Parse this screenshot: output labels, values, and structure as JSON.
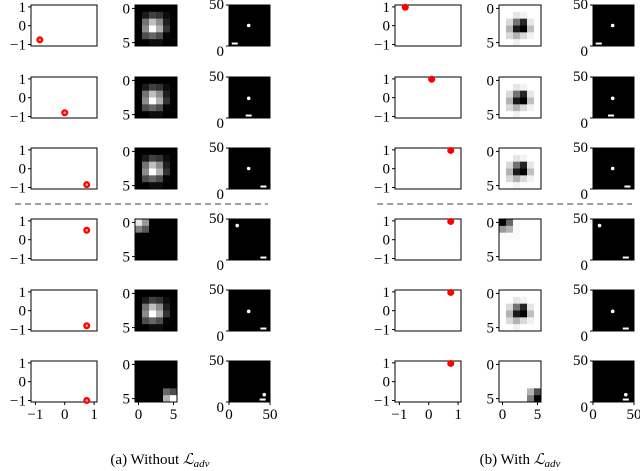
{
  "chart_data": {
    "type": "figure-grid",
    "panels": [
      {
        "caption_prefix": "(a) Without ",
        "caption_symbol": "ℒ",
        "caption_sub": "adv",
        "dot_style": "ring",
        "heatmap_colormap": "gray",
        "rows": [
          {
            "point": [
              -0.85,
              -0.75
            ],
            "heatmap": "blob",
            "ball": [
              24,
              25
            ],
            "paddle_x": 7
          },
          {
            "point": [
              0.0,
              -0.8
            ],
            "heatmap": "blob",
            "ball": [
              24,
              24
            ],
            "paddle_x": 24
          },
          {
            "point": [
              0.75,
              -0.85
            ],
            "heatmap": "blob",
            "ball": [
              24,
              25
            ],
            "paddle_x": 42
          },
          {
            "point": [
              0.75,
              0.5
            ],
            "heatmap": "corner_tl",
            "ball": [
              10,
              42
            ],
            "paddle_x": 42
          },
          {
            "point": [
              0.75,
              -0.8
            ],
            "heatmap": "blob",
            "ball": [
              24,
              24
            ],
            "paddle_x": 42
          },
          {
            "point": [
              0.75,
              -1.0
            ],
            "heatmap": "corner_br",
            "ball": [
              43,
              9
            ],
            "paddle_x": 41
          }
        ],
        "heatmaps": {
          "blob": [
            [
              0,
              0,
              0,
              0,
              0,
              0
            ],
            [
              0,
              0.1,
              0.25,
              0.2,
              0.05,
              0
            ],
            [
              0,
              0.45,
              0.75,
              0.55,
              0.12,
              0
            ],
            [
              0,
              0.55,
              1,
              0.7,
              0.2,
              0
            ],
            [
              0,
              0.3,
              0.4,
              0.3,
              0.02,
              0
            ],
            [
              0,
              0,
              0.05,
              0.05,
              0,
              0
            ]
          ],
          "corner_tl": [
            [
              0.9,
              0.6,
              0,
              0,
              0,
              0
            ],
            [
              0.5,
              0.35,
              0,
              0,
              0,
              0
            ],
            [
              0,
              0,
              0,
              0,
              0,
              0
            ],
            [
              0,
              0,
              0,
              0,
              0,
              0
            ],
            [
              0,
              0,
              0,
              0,
              0,
              0
            ],
            [
              0,
              0,
              0,
              0,
              0,
              0
            ]
          ],
          "corner_br": [
            [
              0,
              0,
              0,
              0,
              0,
              0
            ],
            [
              0,
              0,
              0,
              0,
              0,
              0
            ],
            [
              0,
              0,
              0,
              0,
              0,
              0
            ],
            [
              0,
              0,
              0,
              0,
              0,
              0
            ],
            [
              0,
              0,
              0,
              0,
              0.4,
              0.3
            ],
            [
              0,
              0,
              0,
              0,
              0.7,
              1
            ]
          ]
        }
      },
      {
        "caption_prefix": "(b) With ",
        "caption_symbol": "ℒ",
        "caption_sub": "adv",
        "dot_style": "solid",
        "heatmap_colormap": "gray_r",
        "rows": [
          {
            "point": [
              -0.8,
              0.98
            ],
            "heatmap": "blob",
            "ball": [
              24,
              25
            ],
            "paddle_x": 7
          },
          {
            "point": [
              0.1,
              0.98
            ],
            "heatmap": "blob",
            "ball": [
              24,
              24
            ],
            "paddle_x": 22
          },
          {
            "point": [
              0.75,
              0.97
            ],
            "heatmap": "blob",
            "ball": [
              24,
              25
            ],
            "paddle_x": 42
          },
          {
            "point": [
              0.75,
              0.97
            ],
            "heatmap": "corner_tl",
            "ball": [
              8,
              42
            ],
            "paddle_x": 40
          },
          {
            "point": [
              0.75,
              0.97
            ],
            "heatmap": "blob",
            "ball": [
              24,
              24
            ],
            "paddle_x": 40
          },
          {
            "point": [
              0.75,
              0.97
            ],
            "heatmap": "corner_br",
            "ball": [
              40,
              9
            ],
            "paddle_x": 40
          }
        ],
        "heatmaps": {
          "blob": [
            [
              0,
              0,
              0,
              0,
              0,
              0
            ],
            [
              0,
              0,
              0.1,
              0.05,
              0,
              0
            ],
            [
              0,
              0.15,
              0.55,
              0.85,
              0.1,
              0
            ],
            [
              0,
              0.3,
              0.9,
              1,
              0.25,
              0
            ],
            [
              0,
              0.15,
              0.3,
              0.15,
              0.05,
              0
            ],
            [
              0,
              0,
              0.05,
              0,
              0,
              0
            ]
          ],
          "corner_tl": [
            [
              1,
              0.6,
              0.02,
              0,
              0,
              0
            ],
            [
              0.4,
              0.3,
              0.02,
              0,
              0,
              0
            ],
            [
              0.02,
              0.02,
              0.02,
              0,
              0,
              0
            ],
            [
              0,
              0,
              0,
              0,
              0,
              0
            ],
            [
              0,
              0,
              0,
              0,
              0,
              0
            ],
            [
              0,
              0,
              0,
              0,
              0,
              0
            ]
          ],
          "corner_br": [
            [
              0,
              0,
              0,
              0,
              0,
              0
            ],
            [
              0,
              0,
              0,
              0,
              0,
              0
            ],
            [
              0,
              0,
              0,
              0,
              0,
              0
            ],
            [
              0,
              0,
              0,
              0,
              0,
              0
            ],
            [
              0,
              0,
              0,
              0,
              0.3,
              0.7
            ],
            [
              0,
              0,
              0,
              0,
              0.5,
              1
            ]
          ]
        }
      }
    ],
    "scatter_axes": {
      "xlim": [
        -1.15,
        1.1
      ],
      "ylim": [
        -1.08,
        1.1
      ],
      "xticks": [
        -1,
        0,
        1
      ],
      "yticks": [
        -1,
        0,
        1
      ]
    },
    "heatmap_axes": {
      "size": 6,
      "xticks": [
        0,
        5
      ],
      "yticks": [
        0,
        5
      ]
    },
    "image_axes": {
      "xlim": [
        0,
        50
      ],
      "ylim": [
        0,
        50
      ],
      "xticks": [
        0,
        50
      ],
      "yticks": [
        0,
        50
      ]
    },
    "colors": {
      "point": "#ff0000",
      "divider": "#666666"
    },
    "divider_after_row": 3
  }
}
